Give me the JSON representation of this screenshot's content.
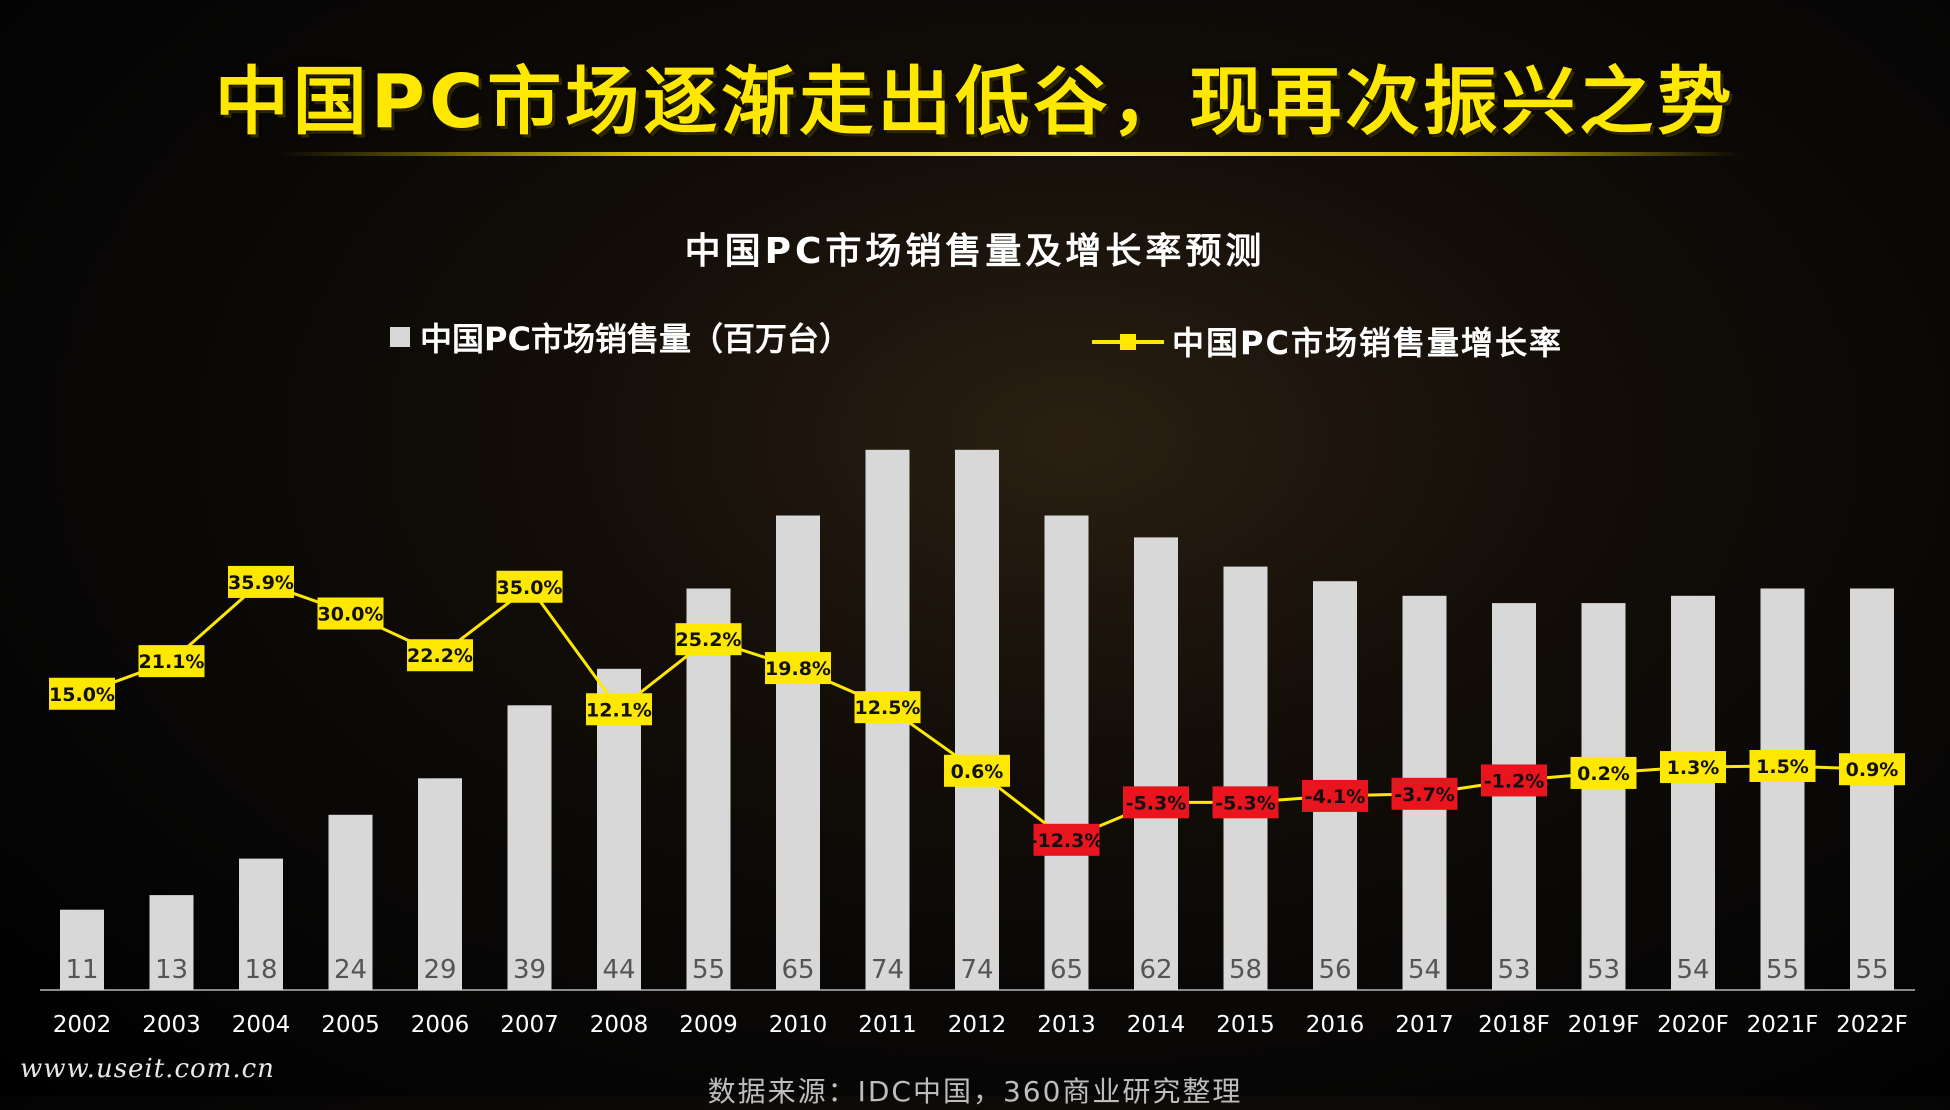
{
  "title": "中国PC市场逐渐走出低谷，现再次振兴之势",
  "watermark": "www.useit.com.cn",
  "source": "数据来源：IDC中国，360商业研究整理",
  "colors": {
    "accent": "#ffe800",
    "bar": "#d8d8d8",
    "negative_label": "#e8141e",
    "positive_label": "#ffe800"
  },
  "chart_data": {
    "type": "bar",
    "title": "中国PC市场销售量及增长率预测",
    "categories": [
      "2002",
      "2003",
      "2004",
      "2005",
      "2006",
      "2007",
      "2008",
      "2009",
      "2010",
      "2011",
      "2012",
      "2013",
      "2014",
      "2015",
      "2016",
      "2017",
      "2018F",
      "2019F",
      "2020F",
      "2021F",
      "2022F"
    ],
    "series": [
      {
        "name": "中国PC市场销售量（百万台）",
        "type": "bar",
        "values": [
          11,
          13,
          18,
          24,
          29,
          39,
          44,
          55,
          65,
          74,
          74,
          65,
          62,
          58,
          56,
          54,
          53,
          53,
          54,
          55,
          55
        ]
      },
      {
        "name": "中国PC市场销售量增长率",
        "type": "line",
        "values": [
          15.0,
          21.1,
          35.9,
          30.0,
          22.2,
          35.0,
          12.1,
          25.2,
          19.8,
          12.5,
          0.6,
          -12.3,
          -5.3,
          -5.3,
          -4.1,
          -3.7,
          -1.2,
          0.2,
          1.3,
          1.5,
          0.9
        ],
        "labels": [
          "15.0%",
          "21.1%",
          "35.9%",
          "30.0%",
          "22.2%",
          "35.0%",
          "12.1%",
          "25.2%",
          "19.8%",
          "12.5%",
          "0.6%",
          "-12.3%",
          "-5.3%",
          "-5.3%",
          "-4.1%",
          "-3.7%",
          "-1.2%",
          "0.2%",
          "1.3%",
          "1.5%",
          "0.9%"
        ]
      }
    ],
    "grid": false,
    "legend": "top"
  }
}
